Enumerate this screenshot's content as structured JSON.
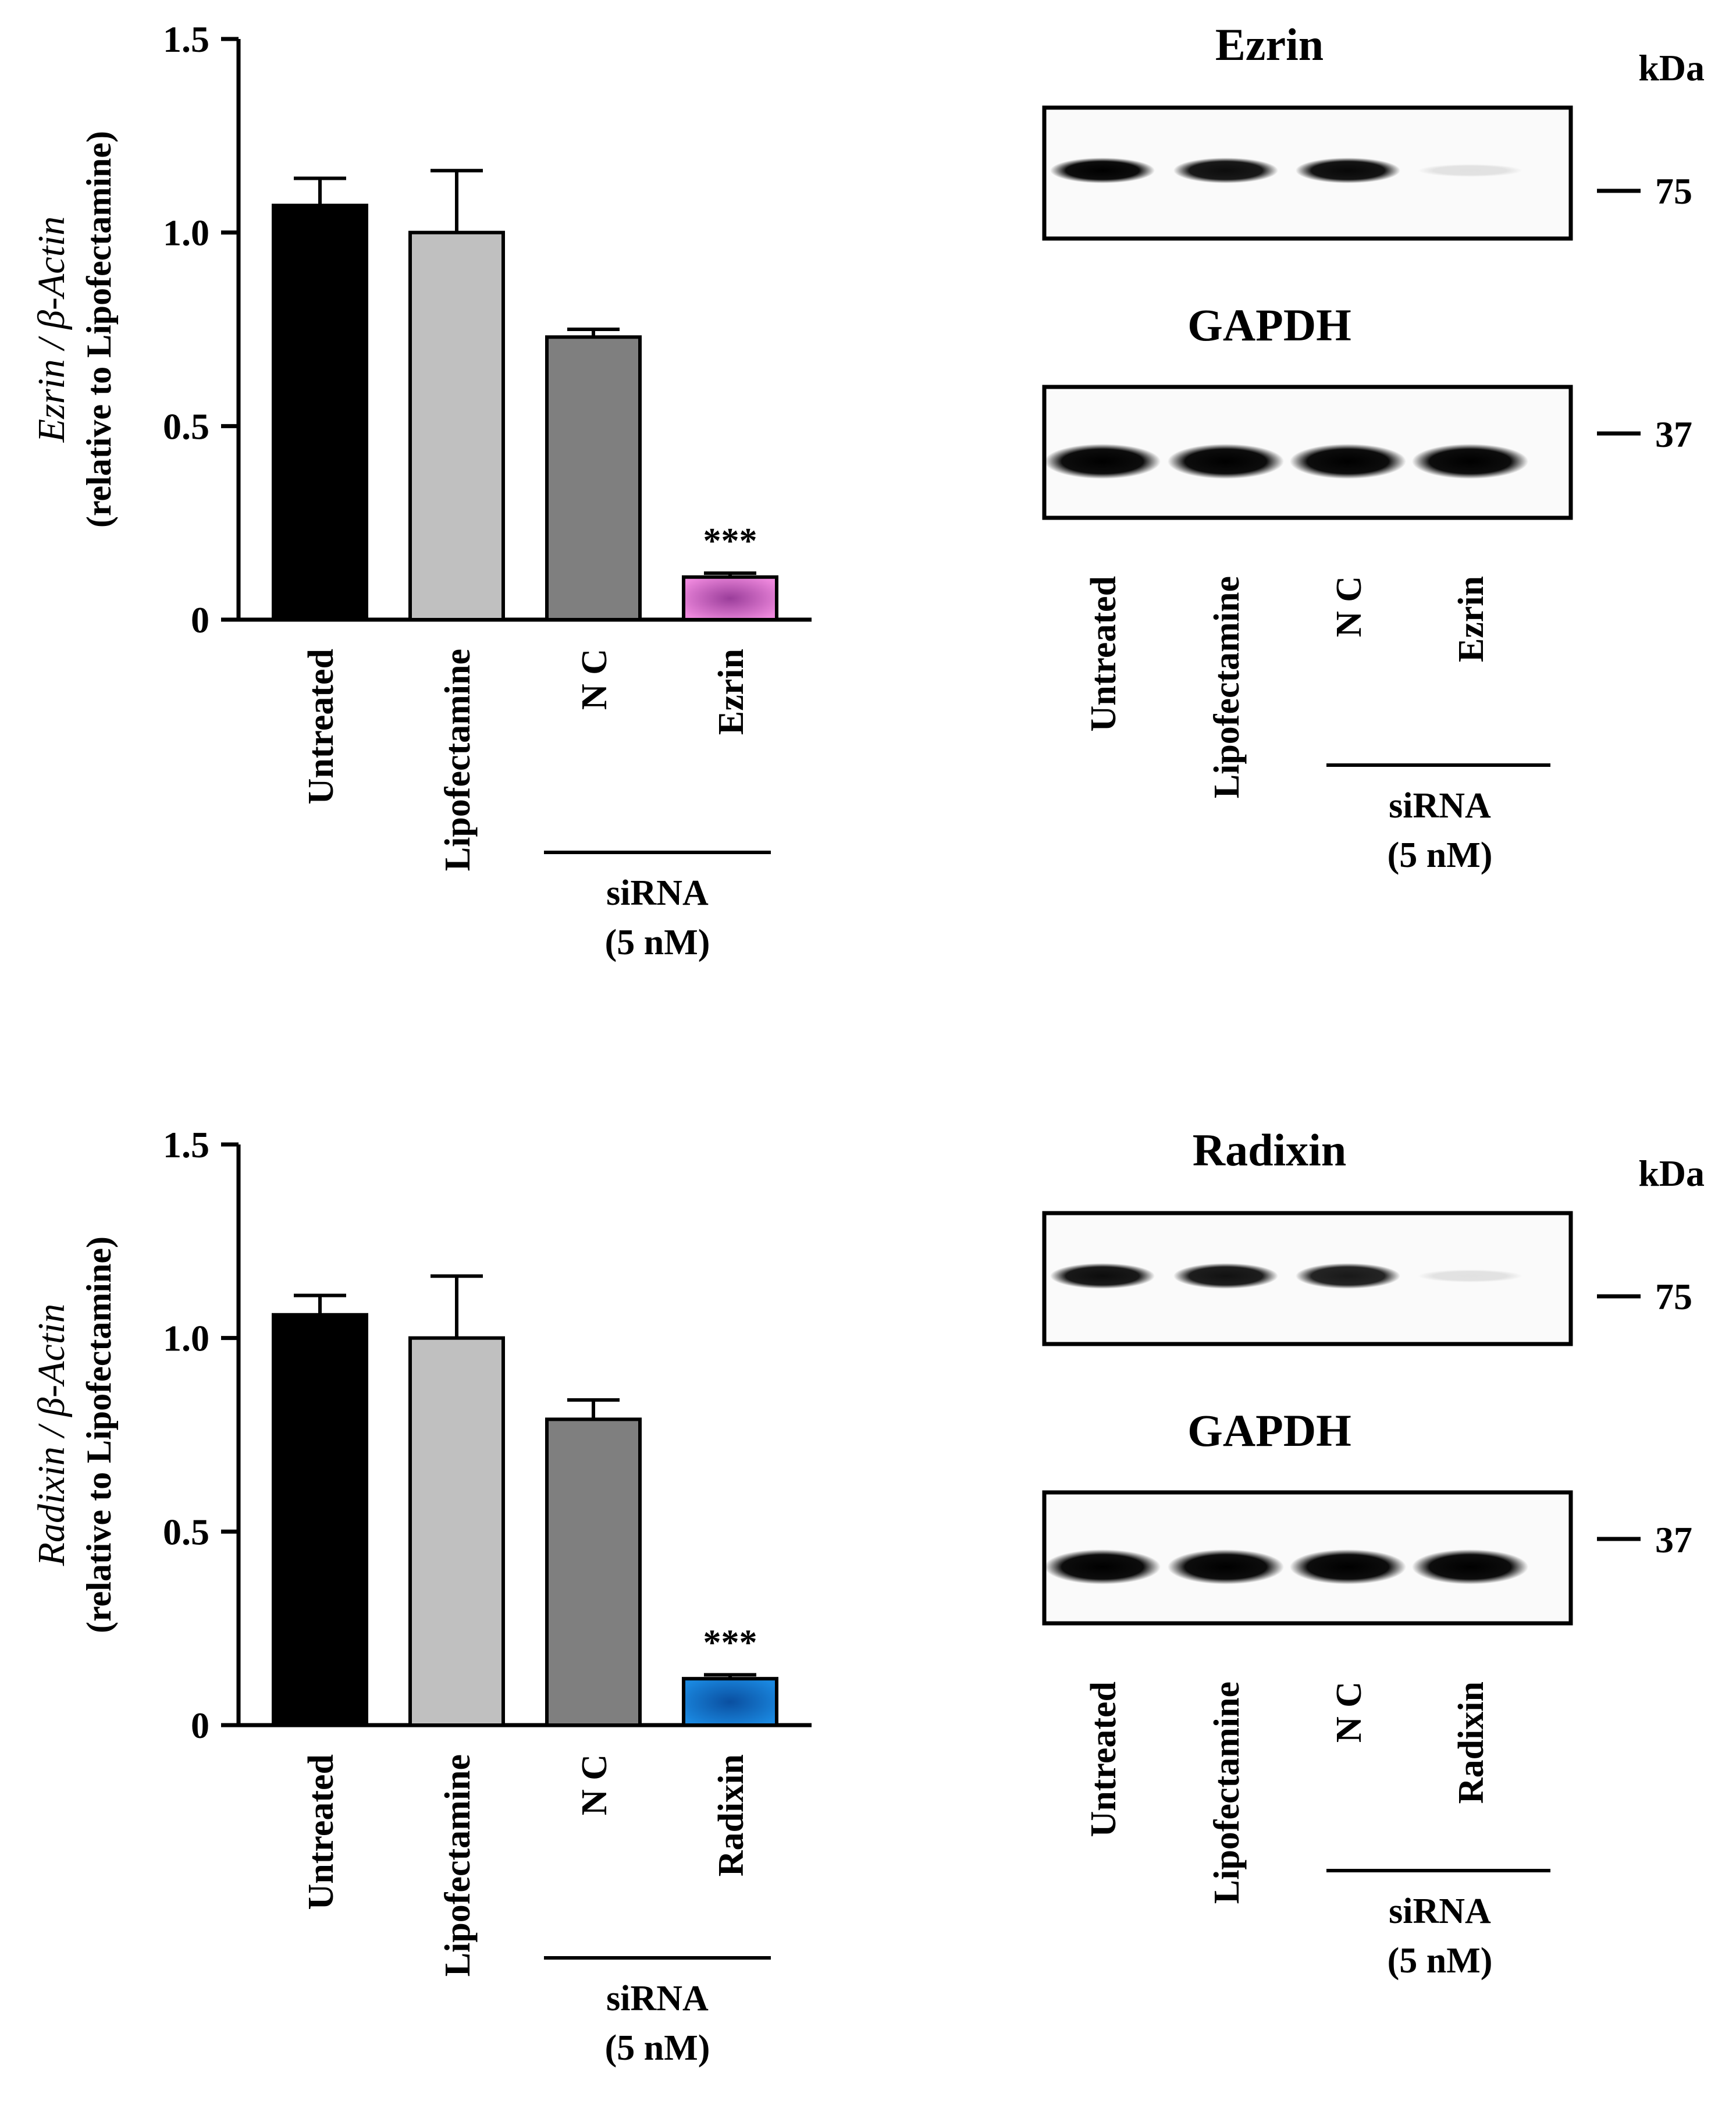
{
  "chart_data": [
    {
      "type": "bar",
      "ylabel_italic": "Ezrin / β-Actin",
      "ylabel": "(relative to Lipofectamine)",
      "ylim": [
        0,
        1.5
      ],
      "yticks": [
        "0",
        "0.5",
        "1.0",
        "1.5"
      ],
      "categories": [
        "Untreated",
        "Lipofectamine",
        "N C",
        "Ezrin"
      ],
      "values": [
        1.07,
        1.0,
        0.73,
        0.11
      ],
      "errors": [
        0.07,
        0.16,
        0.02,
        0.01
      ],
      "colors": [
        "#000000",
        "#c0c0c0",
        "#7f7f7f",
        "#ee88dd"
      ],
      "annotations": [
        "",
        "",
        "",
        "***"
      ],
      "group_label": [
        "siRNA",
        "(5 nM)"
      ]
    },
    {
      "type": "bar",
      "ylabel_italic": "Radixin / β-Actin",
      "ylabel": "(relative to Lipofectamine)",
      "ylim": [
        0,
        1.5
      ],
      "yticks": [
        "0",
        "0.5",
        "1.0",
        "1.5"
      ],
      "categories": [
        "Untreated",
        "Lipofectamine",
        "N C",
        "Radixin"
      ],
      "values": [
        1.06,
        1.0,
        0.79,
        0.12
      ],
      "errors": [
        0.05,
        0.16,
        0.05,
        0.01
      ],
      "colors": [
        "#000000",
        "#c0c0c0",
        "#7f7f7f",
        "#1a88e0"
      ],
      "annotations": [
        "",
        "",
        "",
        "***"
      ],
      "group_label": [
        "siRNA",
        "(5 nM)"
      ]
    }
  ],
  "blots": [
    {
      "title1": "Ezrin",
      "title2": "GAPDH",
      "kda_label": "kDa",
      "marker1": "75",
      "marker2": "37",
      "lanes": [
        "Untreated",
        "Lipofectamine",
        "N C",
        "Ezrin"
      ],
      "band_intensity_top": [
        1.0,
        0.95,
        0.97,
        0.1
      ],
      "group_label": [
        "siRNA",
        "(5 nM)"
      ]
    },
    {
      "title1": "Radixin",
      "title2": "GAPDH",
      "kda_label": "kDa",
      "marker1": "75",
      "marker2": "37",
      "lanes": [
        "Untreated",
        "Lipofectamine",
        "N C",
        "Radixin"
      ],
      "band_intensity_top": [
        0.95,
        0.93,
        0.9,
        0.1
      ],
      "group_label": [
        "siRNA",
        "(5 nM)"
      ]
    }
  ]
}
